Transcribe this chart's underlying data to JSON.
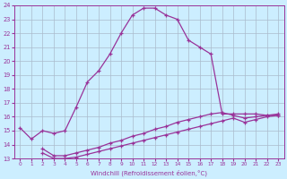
{
  "xlabel": "Windchill (Refroidissement éolien,°C)",
  "bg_color": "#cceeff",
  "grid_color": "#aabbcc",
  "line_color": "#993399",
  "xlim": [
    -0.5,
    23.5
  ],
  "ylim": [
    13,
    24
  ],
  "yticks": [
    13,
    14,
    15,
    16,
    17,
    18,
    19,
    20,
    21,
    22,
    23,
    24
  ],
  "xticks": [
    0,
    1,
    2,
    3,
    4,
    5,
    6,
    7,
    8,
    9,
    10,
    11,
    12,
    13,
    14,
    15,
    16,
    17,
    18,
    19,
    20,
    21,
    22,
    23
  ],
  "line1_x": [
    0,
    1,
    2,
    3,
    4,
    5,
    6,
    7,
    8,
    9,
    10,
    11,
    12,
    13,
    14,
    15,
    16,
    17,
    18,
    19,
    20,
    21,
    22,
    23
  ],
  "line1_y": [
    15.2,
    14.4,
    15.0,
    14.8,
    15.0,
    16.7,
    18.5,
    19.3,
    20.5,
    22.0,
    23.3,
    23.8,
    23.8,
    23.3,
    23.0,
    21.5,
    21.0,
    20.5,
    16.2,
    16.2,
    16.2,
    16.2,
    16.1,
    16.1
  ],
  "line2_x": [
    2,
    3,
    4,
    5,
    6,
    7,
    8,
    9,
    10,
    11,
    12,
    13,
    14,
    15,
    16,
    17,
    18,
    19,
    20,
    21,
    22,
    23
  ],
  "line2_y": [
    13.4,
    13.0,
    13.0,
    13.1,
    13.3,
    13.5,
    13.7,
    13.9,
    14.1,
    14.3,
    14.5,
    14.7,
    14.9,
    15.1,
    15.3,
    15.5,
    15.7,
    15.9,
    15.6,
    15.8,
    16.0,
    16.1
  ],
  "line3_x": [
    2,
    3,
    4,
    5,
    6,
    7,
    8,
    9,
    10,
    11,
    12,
    13,
    14,
    15,
    16,
    17,
    18,
    19,
    20,
    21,
    22,
    23
  ],
  "line3_y": [
    13.7,
    13.2,
    13.2,
    13.4,
    13.6,
    13.8,
    14.1,
    14.3,
    14.6,
    14.8,
    15.1,
    15.3,
    15.6,
    15.8,
    16.0,
    16.2,
    16.3,
    16.1,
    15.9,
    16.0,
    16.1,
    16.2
  ]
}
